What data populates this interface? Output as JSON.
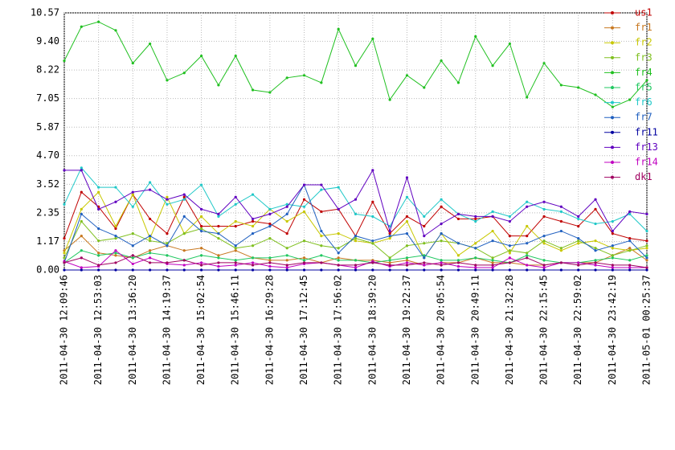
{
  "chart_data": {
    "type": "line",
    "categories": [
      "2011-04-30 12:09:46",
      null,
      "2011-04-30 12:53:03",
      null,
      "2011-04-30 13:36:20",
      null,
      "2011-04-30 14:19:37",
      null,
      "2011-04-30 15:02:54",
      null,
      "2011-04-30 15:46:11",
      null,
      "2011-04-30 16:29:28",
      null,
      "2011-04-30 17:12:45",
      null,
      "2011-04-30 17:56:02",
      null,
      "2011-04-30 18:39:20",
      null,
      "2011-04-30 19:22:37",
      null,
      "2011-04-30 20:05:54",
      null,
      "2011-04-30 20:49:11",
      null,
      "2011-04-30 21:32:28",
      null,
      "2011-04-30 22:15:45",
      null,
      "2011-04-30 22:59:02",
      null,
      "2011-04-30 23:42:19",
      null,
      "2011-05-01 00:25:37"
    ],
    "ylim": [
      0,
      10.57
    ],
    "yticks": [
      {
        "value": 0,
        "label": "0.00"
      },
      1.17,
      2.35,
      3.52,
      {
        "value": 4.7,
        "label": "4.70"
      },
      5.87,
      7.05,
      8.22,
      {
        "value": 9.4,
        "label": "9.40"
      },
      10.57
    ],
    "grid": true,
    "legend": "right",
    "series": [
      {
        "name": "us1",
        "color": "#c00000",
        "values": [
          1.3,
          3.2,
          2.6,
          1.7,
          3.1,
          2.1,
          1.5,
          3.0,
          1.8,
          1.8,
          1.8,
          2.0,
          1.9,
          1.5,
          2.9,
          2.4,
          2.5,
          1.4,
          2.8,
          1.5,
          2.2,
          1.8,
          2.6,
          2.1,
          2.1,
          2.2,
          1.4,
          1.4,
          2.2,
          2.0,
          1.8,
          2.5,
          1.5,
          1.3,
          1.2
        ]
      },
      {
        "name": "fr1",
        "color": "#c87820",
        "values": [
          0.8,
          1.4,
          0.7,
          0.6,
          0.5,
          0.8,
          1.0,
          0.8,
          0.9,
          0.6,
          0.8,
          0.5,
          0.4,
          0.4,
          0.5,
          0.3,
          0.5,
          0.4,
          0.4,
          0.3,
          0.4,
          0.2,
          0.3,
          0.3,
          0.5,
          0.3,
          0.3,
          0.2,
          0.2,
          0.3,
          0.3,
          0.3,
          0.6,
          0.9,
          0.4
        ]
      },
      {
        "name": "fr2",
        "color": "#c8c800",
        "values": [
          0.7,
          2.5,
          3.2,
          1.8,
          3.1,
          1.3,
          3.0,
          1.5,
          2.2,
          1.5,
          2.0,
          1.8,
          2.5,
          2.0,
          2.4,
          1.4,
          1.5,
          1.2,
          1.1,
          1.3,
          2.0,
          0.5,
          1.5,
          0.6,
          1.1,
          1.6,
          0.7,
          1.8,
          1.1,
          0.8,
          1.1,
          1.2,
          0.9,
          0.8,
          0.9
        ]
      },
      {
        "name": "fr3",
        "color": "#80c020",
        "values": [
          0.5,
          2.0,
          1.2,
          1.3,
          1.5,
          1.2,
          1.1,
          1.5,
          1.7,
          1.3,
          0.9,
          1.0,
          1.3,
          0.9,
          1.2,
          1.0,
          0.9,
          1.3,
          1.1,
          0.5,
          1.0,
          1.1,
          1.2,
          1.1,
          0.9,
          0.5,
          0.8,
          0.7,
          1.2,
          0.9,
          1.2,
          0.9,
          0.6,
          0.8,
          1.0
        ]
      },
      {
        "name": "fr4",
        "color": "#20c020",
        "values": [
          8.6,
          10.0,
          10.2,
          9.85,
          8.5,
          9.3,
          7.8,
          8.1,
          8.8,
          7.6,
          8.8,
          7.4,
          7.3,
          7.9,
          8.0,
          7.7,
          9.9,
          8.4,
          9.5,
          7.0,
          8.0,
          7.5,
          8.6,
          7.7,
          9.6,
          8.4,
          9.3,
          7.1,
          8.5,
          7.6,
          7.5,
          7.2,
          6.7,
          7.0,
          7.8
        ]
      },
      {
        "name": "fr5",
        "color": "#20c860",
        "values": [
          0.3,
          0.8,
          0.6,
          0.7,
          0.5,
          0.7,
          0.6,
          0.4,
          0.6,
          0.5,
          0.4,
          0.5,
          0.5,
          0.6,
          0.4,
          0.6,
          0.4,
          0.4,
          0.3,
          0.4,
          0.5,
          0.6,
          0.4,
          0.4,
          0.5,
          0.4,
          0.3,
          0.6,
          0.4,
          0.3,
          0.3,
          0.4,
          0.5,
          0.4,
          0.6
        ]
      },
      {
        "name": "fr6",
        "color": "#20c8c8",
        "values": [
          2.7,
          4.2,
          3.4,
          3.4,
          2.6,
          3.6,
          2.7,
          2.9,
          3.5,
          2.2,
          2.7,
          3.1,
          2.5,
          2.7,
          2.6,
          3.3,
          3.4,
          2.3,
          2.2,
          1.8,
          3.0,
          2.2,
          2.9,
          2.3,
          2.0,
          2.4,
          2.2,
          2.8,
          2.5,
          2.4,
          2.1,
          1.9,
          2.0,
          2.3,
          1.6
        ]
      },
      {
        "name": "fr7",
        "color": "#2060c0",
        "values": [
          0.3,
          2.3,
          1.7,
          1.4,
          1.0,
          1.4,
          1.0,
          2.2,
          1.6,
          1.5,
          1.0,
          1.5,
          1.8,
          2.3,
          3.5,
          1.6,
          0.7,
          1.4,
          1.2,
          1.4,
          1.5,
          0.5,
          1.5,
          1.1,
          0.9,
          1.2,
          1.0,
          1.1,
          1.4,
          1.6,
          1.3,
          0.8,
          1.0,
          1.2,
          0.5
        ]
      },
      {
        "name": "fr11",
        "color": "#0000a0",
        "values": [
          0,
          0,
          0,
          0,
          0,
          0,
          0,
          0,
          0,
          0,
          0,
          0,
          0,
          0,
          0,
          0,
          0,
          0,
          0,
          0,
          0,
          0,
          0,
          0,
          0,
          0,
          0,
          0,
          0,
          0,
          0,
          0,
          0,
          0,
          0
        ]
      },
      {
        "name": "fr13",
        "color": "#6000c0",
        "values": [
          4.1,
          4.1,
          2.5,
          2.8,
          3.2,
          3.3,
          2.9,
          3.1,
          2.5,
          2.3,
          3.0,
          2.1,
          2.3,
          2.6,
          3.5,
          3.5,
          2.5,
          2.9,
          4.1,
          1.6,
          3.8,
          1.4,
          1.9,
          2.3,
          2.2,
          2.2,
          2.0,
          2.6,
          2.8,
          2.6,
          2.2,
          2.9,
          1.6,
          2.4,
          2.3
        ]
      },
      {
        "name": "fr14",
        "color": "#c000c0",
        "values": [
          0.35,
          0.1,
          0.15,
          0.8,
          0.25,
          0.5,
          0.25,
          0.2,
          0.3,
          0.15,
          0.2,
          0.3,
          0.15,
          0.1,
          0.25,
          0.3,
          0.2,
          0.1,
          0.35,
          0.15,
          0.3,
          0.2,
          0.3,
          0.15,
          0.1,
          0.1,
          0.5,
          0.2,
          0.1,
          0.3,
          0.3,
          0.2,
          0.1,
          0.1,
          0.1
        ]
      },
      {
        "name": "dk1",
        "color": "#a00060",
        "values": [
          0.3,
          0.5,
          0.2,
          0.3,
          0.6,
          0.3,
          0.3,
          0.4,
          0.2,
          0.3,
          0.3,
          0.2,
          0.3,
          0.2,
          0.3,
          0.3,
          0.2,
          0.2,
          0.3,
          0.2,
          0.2,
          0.3,
          0.2,
          0.3,
          0.2,
          0.2,
          0.3,
          0.5,
          0.2,
          0.3,
          0.2,
          0.3,
          0.2,
          0.2,
          0.1
        ]
      }
    ]
  }
}
